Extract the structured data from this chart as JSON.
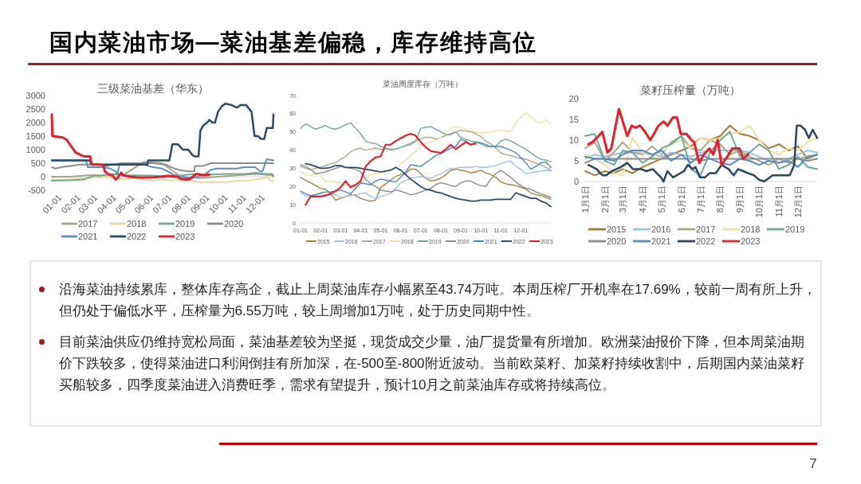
{
  "chart_data": [
    {
      "type": "line",
      "title": "三级菜油基差（华东）",
      "xlim": [
        "--01-01",
        "--12-31"
      ],
      "xticks": [
        {
          "value": "--01-01",
          "label": "01-01"
        },
        {
          "value": "--02-01",
          "label": "02-01"
        },
        {
          "value": "--03-01",
          "label": "03-01"
        },
        {
          "value": "--04-01",
          "label": "04-01"
        },
        {
          "value": "--05-01",
          "label": "05-01"
        },
        {
          "value": "--06-01",
          "label": "06-01"
        },
        {
          "value": "--07-01",
          "label": "07-01"
        },
        {
          "value": "--08-01",
          "label": "08-01"
        },
        {
          "value": "--09-01",
          "label": "09-01"
        },
        {
          "value": "--10-01",
          "label": "10-01"
        },
        {
          "value": "--11-01",
          "label": "11-01"
        },
        {
          "value": "--12-01",
          "label": "12-01"
        }
      ],
      "ylim": [
        -500,
        3000
      ],
      "yticks": [
        -500,
        0,
        500,
        1000,
        1500,
        2000,
        2500,
        3000
      ],
      "legend": "bottom",
      "series": [
        {
          "name": "2017",
          "color": "#a5a58a",
          "x": [
            "--01-01",
            "--02-01",
            "--03-01",
            "--04-01",
            "--05-01",
            "--06-01",
            "--07-01",
            "--08-01",
            "--09-01",
            "--10-01",
            "--11-01",
            "--12-01",
            "--12-31"
          ],
          "values": [
            0,
            0,
            50,
            50,
            100,
            550,
            500,
            0,
            -50,
            0,
            50,
            100,
            50
          ]
        },
        {
          "name": "2018",
          "color": "#e6d8a0",
          "x": [
            "--01-01",
            "--02-01",
            "--03-01",
            "--04-01",
            "--04-16",
            "--05-01",
            "--05-16",
            "--06-01",
            "--06-16",
            "--07-01",
            "--07-16",
            "--08-01",
            "--08-16",
            "--09-01",
            "--09-16",
            "--10-01",
            "--10-16",
            "--11-01",
            "--11-16",
            "--12-01",
            "--12-16",
            "--12-22",
            "--12-25",
            "--12-31"
          ],
          "values": [
            -100,
            -100,
            -50,
            0,
            -50,
            -100,
            -50,
            -100,
            -150,
            -100,
            -150,
            -100,
            -150,
            -200,
            -200,
            -200,
            -200,
            -150,
            -150,
            -100,
            -50,
            0,
            -150,
            -150
          ]
        },
        {
          "name": "2019",
          "color": "#7aa898",
          "x": [
            "--01-01",
            "--02-01",
            "--02-23",
            "--03-07",
            "--03-13",
            "--03-19",
            "--04-01",
            "--04-16",
            "--05-01",
            "--06-01",
            "--07-01",
            "--08-01",
            "--08-26",
            "--09-16",
            "--10-16",
            "--11-16",
            "--12-01",
            "--12-16",
            "--12-29",
            "--12-31"
          ],
          "values": [
            -150,
            -130,
            -100,
            0,
            50,
            30,
            80,
            100,
            50,
            50,
            30,
            50,
            100,
            80,
            100,
            100,
            150,
            100,
            100,
            0
          ]
        },
        {
          "name": "2020",
          "color": "#8c8c8c",
          "x": [
            "--01-01",
            "--01-07",
            "--01-16",
            "--02-01",
            "--02-15",
            "--03-16",
            "--04-01",
            "--04-10",
            "--04-25",
            "--05-16",
            "--06-16",
            "--07-07",
            "--07-16",
            "--07-29",
            "--08-13",
            "--08-23",
            "--08-24",
            "--09-07",
            "--09-19",
            "--12-31"
          ],
          "values": [
            350,
            300,
            350,
            400,
            450,
            450,
            400,
            450,
            500,
            500,
            500,
            450,
            350,
            250,
            200,
            200,
            400,
            400,
            500,
            500
          ]
        },
        {
          "name": "2021",
          "color": "#5e8fbf",
          "x": [
            "--01-01",
            "--02-26",
            "--03-01",
            "--03-28",
            "--04-07",
            "--04-16",
            "--04-19",
            "--04-22",
            "--05-16",
            "--06-01",
            "--06-16",
            "--07-01",
            "--07-10",
            "--07-22",
            "--08-01",
            "--08-16",
            "--08-29",
            "--09-10",
            "--09-19",
            "--09-28",
            "--10-16",
            "--11-01",
            "--11-13",
            "--12-01",
            "--12-09",
            "--12-13",
            "--12-20",
            "--12-31"
          ],
          "values": [
            600,
            600,
            350,
            350,
            300,
            200,
            100,
            450,
            450,
            450,
            350,
            300,
            200,
            50,
            0,
            -50,
            0,
            100,
            250,
            300,
            300,
            300,
            350,
            350,
            200,
            200,
            650,
            600
          ]
        },
        {
          "name": "2022",
          "color": "#2d4b66",
          "x": [
            "--01-01",
            "--03-04",
            "--03-07",
            "--06-07",
            "--06-08",
            "--07-13",
            "--07-18",
            "--07-27",
            "--08-04",
            "--08-13",
            "--08-20",
            "--08-24",
            "--08-30",
            "--09-02",
            "--09-07",
            "--09-13",
            "--09-17",
            "--09-22",
            "--09-26",
            "--10-01",
            "--10-07",
            "--10-13",
            "--10-23",
            "--11-01",
            "--11-07",
            "--11-16",
            "--11-25",
            "--11-30",
            "--12-06",
            "--12-10",
            "--12-16",
            "--12-20",
            "--12-30",
            "--12-31"
          ],
          "values": [
            600,
            600,
            450,
            450,
            600,
            600,
            1200,
            1200,
            1000,
            1000,
            800,
            750,
            750,
            1700,
            1900,
            2000,
            2100,
            2000,
            2000,
            2400,
            2600,
            2700,
            2650,
            2550,
            2650,
            2650,
            2400,
            1500,
            1500,
            1400,
            1400,
            1800,
            1800,
            2300
          ]
        },
        {
          "name": "2023",
          "color": "#e0202a",
          "x": [
            "--01-01",
            "--01-02",
            "--01-04",
            "--01-19",
            "--01-26",
            "--02-01",
            "--02-09",
            "--02-18",
            "--02-23",
            "--03-01",
            "--03-05",
            "--03-07",
            "--03-10",
            "--03-23",
            "--03-27",
            "--03-29",
            "--04-04",
            "--04-10",
            "--04-16",
            "--04-19",
            "--04-25",
            "--04-28",
            "--05-10",
            "--05-20",
            "--06-01",
            "--06-16",
            "--07-01",
            "--07-10",
            "--07-26",
            "--08-01",
            "--08-10",
            "--08-16",
            "--08-26",
            "--09-01",
            "--09-07",
            "--09-17"
          ],
          "values": [
            2300,
            1500,
            1500,
            1450,
            1350,
            1150,
            900,
            800,
            750,
            750,
            750,
            500,
            450,
            450,
            400,
            200,
            100,
            50,
            -100,
            -50,
            150,
            50,
            0,
            -20,
            -30,
            -20,
            0,
            30,
            0,
            -80,
            -100,
            -80,
            100,
            80,
            50,
            80
          ]
        }
      ]
    },
    {
      "type": "line",
      "title": "菜油周度库存（万吨）",
      "categories": [
        "01-01",
        null,
        null,
        null,
        "02-01",
        null,
        null,
        null,
        "03-01",
        null,
        null,
        null,
        "04-01",
        null,
        null,
        null,
        "05-01",
        null,
        null,
        null,
        "06-01",
        null,
        null,
        null,
        "07-01",
        null,
        null,
        null,
        "08-01",
        null,
        null,
        null,
        "09-01",
        null,
        null,
        null,
        "10-01",
        null,
        null,
        null,
        "11-01",
        null,
        null,
        null,
        "12-01",
        null,
        null,
        null,
        null,
        null,
        null
      ],
      "ylim": [
        0,
        70
      ],
      "yticks": [
        0,
        10,
        20,
        30,
        40,
        50,
        60,
        70
      ],
      "legend": "bottom",
      "series": [
        {
          "name": "2015",
          "color": "#a57f43",
          "values": [
            25,
            23.5,
            22,
            20.5,
            19,
            18.5,
            16,
            12.5,
            13.5,
            14.5,
            15.5,
            15,
            13.5,
            12.5,
            12,
            12.5,
            19.5,
            21.5,
            23.5,
            25.5,
            26.5,
            27.5,
            29.5,
            29.5,
            27,
            24.5,
            23,
            23.5,
            24.5,
            26.5,
            29,
            29.5,
            29,
            28.5,
            27.5,
            28,
            29,
            27.5,
            26.5,
            25,
            22.5,
            21.5,
            21,
            20.5,
            19.5,
            18.5,
            16.5,
            15.5,
            15,
            14,
            13
          ]
        },
        {
          "name": "2016",
          "color": "#9ec1de",
          "values": [
            16.5,
            15,
            14.5,
            15.5,
            16,
            15.5,
            15.5,
            15.5,
            14,
            14.5,
            15,
            15.5,
            16,
            16.5,
            14.5,
            13.5,
            14.5,
            15.5,
            16,
            19,
            22,
            23.5,
            24.5,
            25,
            25.5,
            25,
            24.5,
            26,
            27,
            28.5,
            30,
            30,
            30.5,
            30.5,
            30.5,
            31,
            30.5,
            30.5,
            31,
            31.5,
            32.5,
            33.5,
            34,
            31,
            29.5,
            27,
            27.5,
            28,
            28.5,
            29,
            28.5
          ]
        },
        {
          "name": "2017",
          "color": "#a8a88c",
          "values": [
            31,
            30,
            29,
            30,
            30.5,
            31.5,
            32.5,
            33,
            35,
            36.5,
            39,
            40.5,
            41,
            40,
            40.5,
            41,
            40.5,
            40.5,
            40,
            40.5,
            41.5,
            42.5,
            44,
            45,
            46,
            47,
            47,
            46,
            47,
            48,
            49,
            50,
            51,
            50.5,
            50,
            49,
            47.5,
            45,
            43.5,
            41,
            38.5,
            37.5,
            37,
            36,
            35.5,
            35,
            34,
            33,
            32,
            30.5,
            29
          ]
        },
        {
          "name": "2018",
          "color": "#f0dfa8",
          "values": [
            28,
            27,
            26,
            27.5,
            26,
            22.5,
            23,
            22.5,
            22,
            21,
            20.5,
            20,
            22,
            24.5,
            26.5,
            27,
            27.5,
            28,
            29,
            30,
            32.5,
            34.5,
            37,
            39.5,
            42,
            43.5,
            44.5,
            45,
            47,
            49.5,
            52,
            53,
            52.5,
            51.5,
            50.5,
            50,
            49.5,
            49.5,
            50,
            50.5,
            51,
            50.5,
            50,
            55,
            58,
            60.5,
            58.5,
            56,
            55,
            56.5,
            54
          ]
        },
        {
          "name": "2019",
          "color": "#6ea79b",
          "values": [
            52,
            54.5,
            53,
            51.5,
            52.5,
            53.5,
            52,
            51.5,
            52.5,
            54,
            55,
            52,
            49,
            45,
            44,
            43.5,
            42,
            41,
            40.5,
            40.5,
            41.5,
            42.5,
            43,
            45,
            52,
            52.5,
            53,
            51.5,
            50,
            48.5,
            48.5,
            50,
            47,
            46,
            45,
            44.5,
            43.5,
            42,
            42,
            42,
            45,
            46,
            45,
            43.5,
            42,
            40.5,
            38.5,
            36.5,
            35,
            34.5,
            33.5
          ]
        },
        {
          "name": "2020",
          "color": "#8a8a8a",
          "values": [
            32,
            31,
            29.5,
            27,
            27.5,
            28,
            29,
            30,
            31,
            30.5,
            30,
            29.5,
            28,
            24,
            21.5,
            20,
            18,
            17.5,
            17,
            18,
            17.5,
            16.5,
            15.5,
            16,
            17,
            18,
            19,
            21,
            22,
            21.5,
            20.5,
            20,
            22,
            23,
            23,
            21.5,
            20.5,
            20,
            24,
            27,
            29,
            27,
            25,
            22.5,
            20.5,
            19,
            18.5,
            17,
            16,
            15,
            14
          ]
        },
        {
          "name": "2021",
          "color": "#4d86c0",
          "values": [
            17.5,
            16,
            15,
            15.5,
            16.5,
            17,
            17,
            17.5,
            18,
            17,
            16,
            19,
            22,
            21.5,
            21,
            23,
            24,
            23.5,
            23,
            22.5,
            25,
            28,
            32,
            31.5,
            31,
            33,
            35,
            37,
            38,
            39.5,
            41,
            42,
            46,
            45,
            43,
            44.5,
            44,
            43,
            42,
            42,
            42,
            41,
            40,
            38.5,
            36,
            33,
            29.5,
            31,
            33,
            33.5,
            30.5
          ]
        },
        {
          "name": "2022",
          "color": "#2d4b66",
          "values": [
            null,
            32.5,
            32,
            31,
            30,
            30,
            30.5,
            31.5,
            31.5,
            30.5,
            30.5,
            30.5,
            30,
            29.5,
            29,
            28.5,
            28,
            28.5,
            29,
            30.5,
            29,
            26.5,
            24,
            22,
            20,
            18.5,
            18,
            17,
            16.5,
            15.5,
            14.5,
            13.5,
            13,
            12.5,
            12,
            12,
            12.5,
            12.5,
            12.5,
            13,
            13,
            13,
            13,
            16.5,
            15.5,
            14.5,
            13.5,
            13.5,
            12,
            11,
            9
          ]
        },
        {
          "name": "2023",
          "color": "#e0202a",
          "values": [
            null,
            10,
            14.5,
            14.5,
            14.5,
            15,
            16,
            17.5,
            19.5,
            23,
            19.5,
            21,
            23,
            31,
            34,
            36,
            36.5,
            43,
            43,
            45,
            46.5,
            48,
            49,
            48,
            44.5,
            41.5,
            39.5,
            39,
            38.5,
            40.5,
            43,
            40.5,
            42.5,
            44.5,
            43,
            43.5,
            null,
            null,
            null,
            null,
            null,
            null,
            null,
            null,
            null,
            null,
            null,
            null,
            null,
            null,
            null
          ]
        }
      ]
    },
    {
      "type": "line",
      "title": "菜籽压榨量（万吨）",
      "xlim": [
        "--01-01",
        "--12-31"
      ],
      "xticks": [
        {
          "value": "--01-01",
          "label": "1月1日"
        },
        {
          "value": "--02-01",
          "label": "2月1日"
        },
        {
          "value": "--03-01",
          "label": "3月1日"
        },
        {
          "value": "--04-01",
          "label": "4月1日"
        },
        {
          "value": "--05-01",
          "label": "5月1日"
        },
        {
          "value": "--06-01",
          "label": "6月1日"
        },
        {
          "value": "--07-01",
          "label": "7月1日"
        },
        {
          "value": "--08-01",
          "label": "8月1日"
        },
        {
          "value": "--09-01",
          "label": "9月1日"
        },
        {
          "value": "--10-01",
          "label": "10月1日"
        },
        {
          "value": "--11-01",
          "label": "11月1日"
        },
        {
          "value": "--12-01",
          "label": "12月1日"
        }
      ],
      "ylim": [
        0,
        20
      ],
      "yticks": [
        0,
        5,
        10,
        15,
        20
      ],
      "legend": "bottom",
      "series": [
        {
          "name": "2015",
          "color": "#a07c3a",
          "x": [
            "--01-01",
            "--01-16",
            "--02-01",
            "--02-15",
            "--03-01",
            "--03-16",
            "--04-01",
            "--04-16",
            "--05-01",
            "--05-16",
            "--06-01",
            "--06-16",
            "--07-01",
            "--07-16",
            "--08-01",
            "--08-16",
            "--09-01",
            "--09-16",
            "--10-01",
            "--10-16",
            "--11-01",
            "--11-16",
            "--12-01",
            "--12-16",
            "--12-31"
          ],
          "values": [
            2.5,
            1.5,
            2.5,
            2,
            3,
            2,
            3.5,
            4.5,
            5.5,
            6.5,
            7.5,
            8.5,
            10.5,
            10,
            11,
            13.5,
            11.5,
            11,
            10,
            8,
            9,
            7.5,
            8.5,
            5.5,
            6.5
          ]
        },
        {
          "name": "2016",
          "color": "#9ec1de",
          "x": [
            "--01-01",
            "--01-16",
            "--02-01",
            "--02-15",
            "--03-01",
            "--03-16",
            "--04-01",
            "--04-16",
            "--05-01",
            "--05-16",
            "--06-01",
            "--06-16",
            "--07-01",
            "--07-16",
            "--08-01",
            "--08-16",
            "--09-01",
            "--09-16",
            "--10-01",
            "--10-16",
            "--11-01",
            "--11-16",
            "--12-01",
            "--12-16",
            "--12-31"
          ],
          "values": [
            5.5,
            6.5,
            6,
            6.5,
            7,
            7,
            7,
            6.5,
            6,
            7,
            6.5,
            6,
            7,
            7.5,
            7.5,
            7.5,
            7.5,
            7,
            6,
            5,
            4.5,
            5.5,
            6.5,
            7.5,
            7
          ]
        },
        {
          "name": "2017",
          "color": "#a8a88c",
          "x": [
            "--01-01",
            "--01-16",
            "--02-01",
            "--02-15",
            "--03-01",
            "--03-16",
            "--04-01",
            "--04-16",
            "--05-01",
            "--05-16",
            "--06-01",
            "--06-16",
            "--07-01",
            "--07-16",
            "--08-01",
            "--08-16",
            "--09-01",
            "--09-16",
            "--10-01",
            "--10-16",
            "--11-01",
            "--11-16",
            "--12-01",
            "--12-16",
            "--12-31"
          ],
          "values": [
            8,
            9.5,
            5,
            7,
            9.5,
            7,
            6.5,
            8.5,
            6.5,
            9.5,
            11,
            8,
            7.5,
            10,
            9,
            6.5,
            7.5,
            6,
            5,
            4,
            5.5,
            4.5,
            5.5,
            6,
            6.5
          ]
        },
        {
          "name": "2018",
          "color": "#f2dfa5",
          "x": [
            "--01-01",
            "--01-16",
            "--02-01",
            "--02-15",
            "--03-01",
            "--03-16",
            "--04-01",
            "--04-16",
            "--05-01",
            "--05-16",
            "--06-01",
            "--06-16",
            "--07-01",
            "--07-16",
            "--08-01",
            "--08-16",
            "--09-01",
            "--09-16",
            "--10-01",
            "--10-16",
            "--11-01",
            "--11-16",
            "--12-01",
            "--12-16",
            "--12-31"
          ],
          "values": [
            6.5,
            5.5,
            4,
            2,
            1.5,
            10.5,
            7,
            6,
            7,
            9,
            10,
            8,
            10.5,
            10,
            10.5,
            11.5,
            12,
            13.5,
            10,
            7.5,
            6.5,
            8,
            7.5,
            9.5,
            10.5
          ]
        },
        {
          "name": "2019",
          "color": "#6ea79b",
          "x": [
            "--01-01",
            "--01-16",
            "--02-01",
            "--02-15",
            "--03-01",
            "--03-16",
            "--04-01",
            "--04-16",
            "--05-01",
            "--05-16",
            "--06-01",
            "--06-16",
            "--07-01",
            "--07-16",
            "--08-01",
            "--08-16",
            "--09-01",
            "--09-16",
            "--10-01",
            "--10-16",
            "--11-01",
            "--11-16",
            "--12-01",
            "--12-16",
            "--12-31"
          ],
          "values": [
            11,
            11.5,
            5,
            4,
            7.5,
            7,
            4.5,
            6,
            8,
            9,
            11,
            3,
            1.5,
            7,
            10,
            12,
            6,
            7,
            9,
            7.5,
            3,
            4,
            6,
            3.5,
            3
          ]
        },
        {
          "name": "2020",
          "color": "#8a8a8a",
          "x": [
            "--01-01",
            "--01-16",
            "--02-01",
            "--02-15",
            "--03-01",
            "--03-16",
            "--04-01",
            "--04-16",
            "--05-01",
            "--05-16",
            "--06-01",
            "--06-16",
            "--07-01",
            "--07-16",
            "--08-01",
            "--08-16",
            "--09-01",
            "--09-16",
            "--10-01",
            "--10-16",
            "--11-01",
            "--11-16",
            "--12-01",
            "--12-16",
            "--12-31"
          ],
          "values": [
            4.5,
            5.5,
            5.5,
            5.5,
            5.5,
            5.5,
            5.5,
            5.5,
            5.5,
            5.5,
            5.5,
            5.5,
            5,
            5.5,
            5.5,
            5.5,
            5.5,
            5.5,
            5.5,
            5.5,
            5.5,
            5.5,
            5.5,
            5,
            5.5
          ]
        },
        {
          "name": "2021",
          "color": "#5b8bbd",
          "x": [
            "--01-01",
            "--01-16",
            "--02-01",
            "--02-15",
            "--03-01",
            "--03-16",
            "--04-01",
            "--04-16",
            "--05-01",
            "--05-16",
            "--06-01",
            "--06-16",
            "--07-01",
            "--07-16",
            "--08-01",
            "--08-16",
            "--09-01",
            "--09-16",
            "--10-01",
            "--10-16",
            "--11-01",
            "--11-16",
            "--12-01",
            "--12-16",
            "--12-31"
          ],
          "values": [
            6,
            5.5,
            5.5,
            5,
            6.5,
            7.5,
            7.5,
            6.5,
            7.5,
            5,
            6.5,
            4.5,
            6.5,
            5.5,
            4.5,
            4,
            5.5,
            5,
            4,
            5,
            4.5,
            5,
            3.5,
            6,
            6.5
          ]
        },
        {
          "name": "2022",
          "color": "#2a4663",
          "x": [
            "--01-06",
            "--01-19",
            "--01-28",
            "--02-03",
            "--02-12",
            "--02-26",
            "--03-08",
            "--03-17",
            "--03-30",
            "--04-07",
            "--04-17",
            "--04-30",
            "--05-04",
            "--05-10",
            "--05-19",
            "--06-05",
            "--06-11",
            "--06-19",
            "--06-23",
            "--06-30",
            "--07-08",
            "--07-15",
            "--07-25",
            "--08-03",
            "--08-14",
            "--08-22",
            "--08-29",
            "--09-06",
            "--09-14",
            "--09-23",
            "--09-30",
            "--10-09",
            "--10-22",
            "--11-12",
            "--11-18",
            "--11-25",
            "--11-29",
            "--12-05",
            "--12-12",
            "--12-18",
            "--12-24",
            "--12-31"
          ],
          "values": [
            4,
            3,
            1.5,
            1.5,
            2.5,
            3.5,
            4.5,
            3,
            3,
            2.5,
            3,
            1,
            0,
            2.5,
            1,
            2.5,
            4,
            3,
            3.5,
            1,
            1,
            2,
            2,
            4,
            3,
            1.5,
            3,
            2.5,
            2,
            1.5,
            0.5,
            0,
            1.5,
            1.5,
            1.5,
            4,
            13.5,
            13.5,
            12.5,
            10.5,
            12.5,
            10.5
          ]
        },
        {
          "name": "2023",
          "color": "#e0202a",
          "x": [
            "--01-06",
            "--01-12",
            "--01-19",
            "--01-28",
            "--02-05",
            "--02-11",
            "--02-16",
            "--02-23",
            "--03-02",
            "--03-08",
            "--03-15",
            "--03-21",
            "--03-28",
            "--04-05",
            "--04-13",
            "--04-19",
            "--04-26",
            "--05-04",
            "--05-10",
            "--05-19",
            "--05-25",
            "--05-31",
            "--06-09",
            "--06-17",
            "--06-21",
            "--06-29",
            "--07-06",
            "--07-15",
            "--07-21",
            "--07-28",
            "--08-03",
            "--08-12",
            "--08-20",
            "--08-31",
            "--09-06",
            "--09-14"
          ],
          "values": [
            9,
            9.5,
            10.5,
            12,
            7,
            8,
            12,
            17.5,
            14,
            11,
            13.5,
            13,
            13.5,
            12,
            10,
            11.5,
            13.5,
            14.5,
            13.5,
            15.5,
            15.5,
            11.5,
            11.5,
            10,
            9.5,
            4.5,
            6.5,
            8,
            6.5,
            10,
            4,
            6,
            8,
            8,
            5.5,
            6.5
          ]
        }
      ]
    },
    {
      "type": "other",
      "title": "国内菜油市场—菜油基差偏稳，库存维持高位",
      "annotations": [
        "沿海菜油持续累库，整体库存高企，截止上周菜油库存小幅累至43.74万吨。本周压榨厂开机率在17.69%，较前一周有所上升，但仍处于偏低水平，压榨量为6.55万吨，较上周增加1万吨，处于历史同期中性。",
        "目前菜油供应仍维持宽松局面，菜油基差较为坚挺，现货成交少量，油厂提货量有所增加。欧洲菜油报价下降，但本周菜油期价下跌较多，使得菜油进口利润倒挂有所加深，在-500至-800附近波动。当前欧菜籽、加菜籽持续收割中，后期国内菜油菜籽买船较多，四季度菜油进入消费旺季，需求有望提升，预计10月之前菜油库存或将持续高位。",
        "7"
      ]
    }
  ]
}
